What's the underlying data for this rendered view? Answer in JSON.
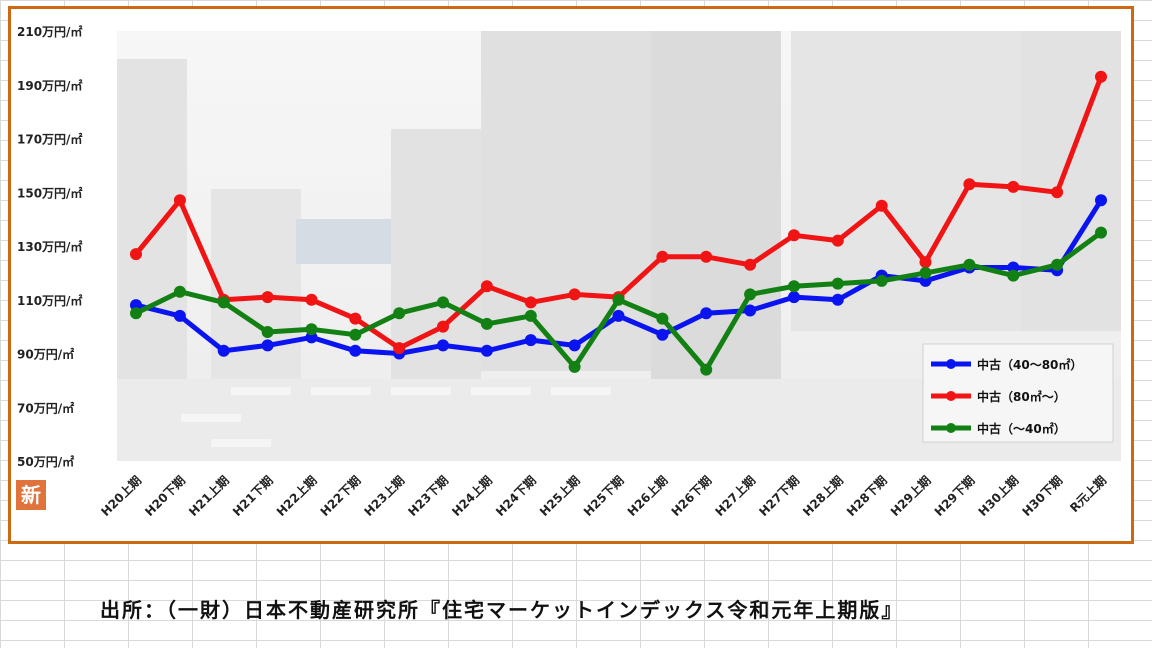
{
  "chart_data": {
    "type": "line",
    "title": "",
    "xlabel": "",
    "ylabel": "",
    "ylim": [
      50,
      210
    ],
    "yticks": [
      50,
      70,
      90,
      110,
      130,
      150,
      170,
      190,
      210
    ],
    "y_tick_suffix": "万円/㎡",
    "grid": false,
    "legend_position": "bottom-right",
    "categories": [
      "H20上期",
      "H20下期",
      "H21上期",
      "H21下期",
      "H22上期",
      "H22下期",
      "H23上期",
      "H23下期",
      "H24上期",
      "H24下期",
      "H25上期",
      "H25下期",
      "H26上期",
      "H26下期",
      "H27上期",
      "H27下期",
      "H28上期",
      "H28下期",
      "H29上期",
      "H29下期",
      "H30上期",
      "H30下期",
      "R元上期"
    ],
    "series": [
      {
        "name": "中古（40～80㎡）",
        "color": "#0a14f0",
        "values": [
          108,
          104,
          91,
          93,
          96,
          91,
          90,
          93,
          91,
          95,
          93,
          104,
          97,
          105,
          106,
          111,
          110,
          119,
          117,
          122,
          122,
          121,
          147
        ]
      },
      {
        "name": "中古（80㎡～）",
        "color": "#f01414",
        "values": [
          127,
          147,
          110,
          111,
          110,
          103,
          92,
          100,
          115,
          109,
          112,
          111,
          126,
          126,
          123,
          134,
          132,
          145,
          124,
          153,
          152,
          150,
          193
        ]
      },
      {
        "name": "中古（～40㎡）",
        "color": "#138013",
        "values": [
          105,
          113,
          109,
          98,
          99,
          97,
          105,
          109,
          101,
          104,
          85,
          110,
          103,
          84,
          112,
          115,
          116,
          117,
          120,
          123,
          119,
          123,
          135
        ]
      }
    ]
  },
  "logo": {
    "text": "新"
  },
  "source_note": "出所：（一財）日本不動産研究所『住宅マーケットインデックス令和元年上期版』"
}
